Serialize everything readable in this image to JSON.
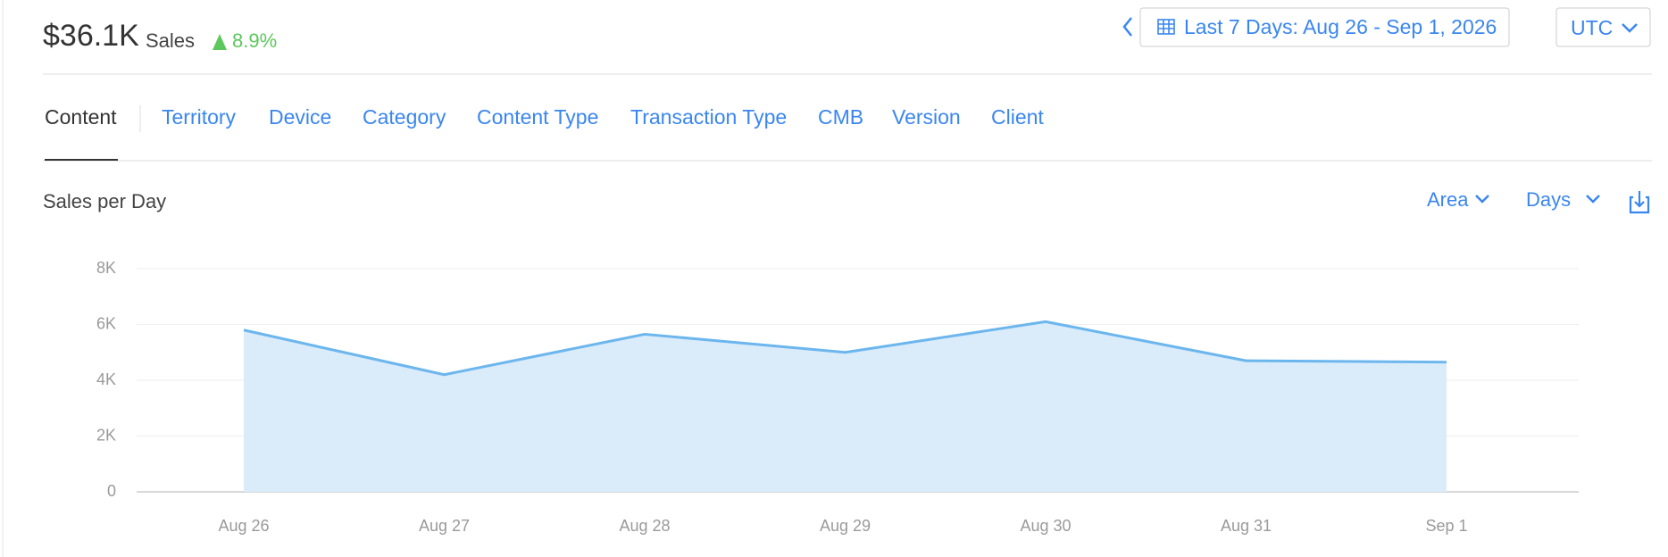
{
  "header": {
    "total": "$36.1K",
    "label": "Sales",
    "change": "8.9%"
  },
  "date_range": "Last 7 Days: Aug 26 - Sep 1, 2026",
  "timezone": "UTC",
  "tabs": [
    "Content",
    "Territory",
    "Device",
    "Category",
    "Content Type",
    "Transaction Type",
    "CMB",
    "Version",
    "Client"
  ],
  "chart_controls": {
    "style": "Area",
    "period": "Days"
  },
  "chart_data": {
    "type": "area",
    "title": "Sales per Day",
    "categories": [
      "Aug 26",
      "Aug 27",
      "Aug 28",
      "Aug 29",
      "Aug 30",
      "Aug 31",
      "Sep 1"
    ],
    "values": [
      5800,
      4200,
      5650,
      5000,
      6100,
      4700,
      4650
    ],
    "color": "#6cb6ee",
    "fill": "#daebfa",
    "ylim": [
      0,
      8000
    ],
    "yticks": [
      0,
      {
        "value": 2000,
        "label": "2K"
      },
      {
        "value": 4000,
        "label": "4K"
      },
      {
        "value": 6000,
        "label": "6K"
      },
      {
        "value": 8000,
        "label": "8K"
      }
    ],
    "grid": true
  }
}
